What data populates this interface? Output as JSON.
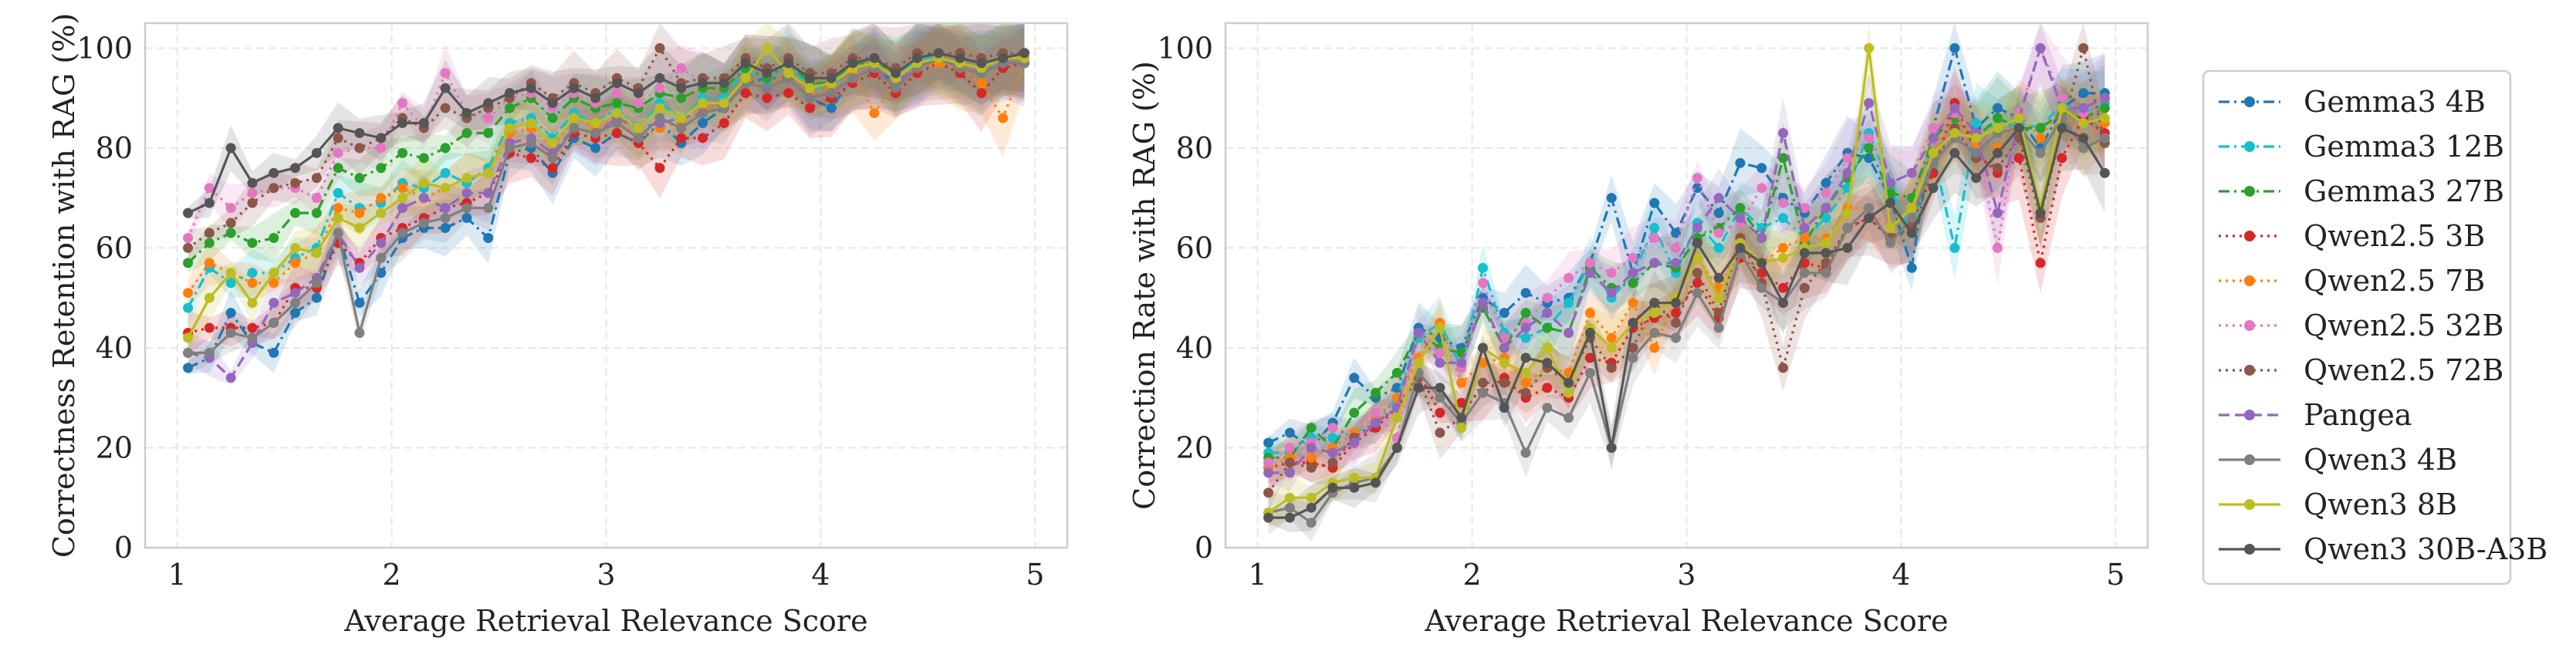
{
  "chart_data": [
    {
      "type": "line",
      "title": "",
      "xlabel": "Average Retrieval Relevance Score",
      "ylabel": "Correctness Retention with RAG (%)",
      "xlim": [
        0.85,
        5.15
      ],
      "ylim": [
        0,
        105
      ],
      "xticks": [
        1,
        2,
        3,
        4,
        5
      ],
      "yticks": [
        0,
        20,
        40,
        60,
        80,
        100
      ],
      "grid": true,
      "x": [
        1.05,
        1.15,
        1.25,
        1.35,
        1.45,
        1.55,
        1.65,
        1.75,
        1.85,
        1.95,
        2.05,
        2.15,
        2.25,
        2.35,
        2.45,
        2.55,
        2.65,
        2.75,
        2.85,
        2.95,
        3.05,
        3.15,
        3.25,
        3.35,
        3.45,
        3.55,
        3.65,
        3.75,
        3.85,
        3.95,
        4.05,
        4.15,
        4.25,
        4.35,
        4.45,
        4.55,
        4.65,
        4.75,
        4.85,
        4.95
      ],
      "series": [
        {
          "name": "Gemma3 4B",
          "values": [
            36,
            38,
            47,
            41,
            39,
            47,
            50,
            63,
            49,
            55,
            62,
            64,
            64,
            66,
            62,
            79,
            80,
            75,
            82,
            80,
            83,
            81,
            85,
            81,
            85,
            88,
            93,
            94,
            94,
            90,
            88,
            94,
            96,
            93,
            96,
            98,
            96,
            95,
            97,
            97
          ]
        },
        {
          "name": "Gemma3 12B",
          "values": [
            48,
            56,
            53,
            55,
            55,
            58,
            60,
            71,
            68,
            69,
            73,
            72,
            75,
            73,
            76,
            85,
            86,
            82,
            87,
            85,
            88,
            84,
            89,
            86,
            90,
            90,
            96,
            93,
            97,
            92,
            92,
            96,
            97,
            94,
            98,
            98,
            97,
            96,
            98,
            98
          ]
        },
        {
          "name": "Gemma3 27B",
          "values": [
            57,
            61,
            63,
            61,
            62,
            67,
            67,
            76,
            74,
            76,
            79,
            78,
            80,
            83,
            83,
            88,
            90,
            86,
            90,
            88,
            89,
            88,
            91,
            90,
            92,
            92,
            96,
            94,
            97,
            93,
            93,
            97,
            97,
            95,
            98,
            99,
            98,
            97,
            98,
            99
          ]
        },
        {
          "name": "Qwen2.5 3B",
          "values": [
            43,
            44,
            44,
            44,
            45,
            52,
            52,
            61,
            57,
            62,
            64,
            66,
            68,
            69,
            71,
            79,
            78,
            76,
            83,
            82,
            83,
            81,
            76,
            82,
            82,
            85,
            91,
            90,
            91,
            88,
            90,
            93,
            95,
            91,
            95,
            97,
            95,
            91,
            96,
            97
          ]
        },
        {
          "name": "Qwen2.5 7B",
          "values": [
            51,
            57,
            55,
            53,
            53,
            57,
            59,
            68,
            67,
            70,
            72,
            70,
            72,
            74,
            75,
            83,
            84,
            80,
            86,
            84,
            86,
            82,
            84,
            85,
            88,
            89,
            94,
            92,
            95,
            91,
            92,
            95,
            87,
            93,
            96,
            97,
            96,
            93,
            86,
            97
          ]
        },
        {
          "name": "Qwen2.5 32B",
          "values": [
            62,
            72,
            68,
            71,
            72,
            72,
            70,
            79,
            80,
            80,
            89,
            84,
            95,
            87,
            86,
            90,
            91,
            88,
            91,
            89,
            91,
            89,
            92,
            96,
            93,
            93,
            97,
            95,
            97,
            94,
            94,
            97,
            98,
            95,
            98,
            99,
            98,
            97,
            98,
            99
          ]
        },
        {
          "name": "Qwen2.5 72B",
          "values": [
            60,
            63,
            65,
            69,
            72,
            73,
            74,
            82,
            80,
            82,
            86,
            84,
            88,
            86,
            88,
            90,
            93,
            90,
            93,
            91,
            94,
            92,
            100,
            93,
            94,
            94,
            98,
            96,
            98,
            95,
            95,
            98,
            98,
            96,
            99,
            99,
            99,
            98,
            99,
            99
          ]
        },
        {
          "name": "Pangea",
          "values": [
            39,
            38,
            34,
            41,
            49,
            51,
            54,
            63,
            56,
            61,
            68,
            70,
            68,
            71,
            71,
            81,
            82,
            79,
            84,
            83,
            86,
            84,
            85,
            86,
            87,
            88,
            93,
            92,
            94,
            90,
            91,
            94,
            96,
            93,
            96,
            98,
            96,
            95,
            97,
            97
          ]
        },
        {
          "name": "Qwen3 4B",
          "values": [
            39,
            39,
            43,
            42,
            45,
            49,
            53,
            63,
            43,
            58,
            63,
            65,
            66,
            68,
            68,
            80,
            81,
            78,
            84,
            83,
            85,
            82,
            86,
            84,
            87,
            88,
            93,
            92,
            94,
            90,
            91,
            94,
            96,
            92,
            96,
            98,
            96,
            95,
            97,
            97
          ]
        },
        {
          "name": "Qwen3 8B",
          "values": [
            42,
            50,
            55,
            49,
            55,
            60,
            59,
            66,
            64,
            67,
            70,
            73,
            72,
            74,
            75,
            84,
            85,
            81,
            86,
            85,
            87,
            84,
            88,
            86,
            89,
            89,
            94,
            100,
            95,
            92,
            93,
            96,
            97,
            94,
            97,
            98,
            97,
            96,
            98,
            98
          ]
        },
        {
          "name": "Qwen3 30B-A3B",
          "values": [
            67,
            69,
            80,
            73,
            75,
            76,
            79,
            84,
            83,
            82,
            85,
            85,
            92,
            87,
            89,
            91,
            92,
            89,
            92,
            90,
            93,
            91,
            94,
            92,
            93,
            93,
            97,
            95,
            97,
            94,
            94,
            97,
            98,
            95,
            98,
            99,
            98,
            97,
            98,
            99
          ]
        }
      ]
    },
    {
      "type": "line",
      "title": "",
      "xlabel": "Average Retrieval Relevance Score",
      "ylabel": "Correction Rate with RAG (%)",
      "xlim": [
        0.85,
        5.15
      ],
      "ylim": [
        0,
        105
      ],
      "xticks": [
        1,
        2,
        3,
        4,
        5
      ],
      "yticks": [
        0,
        20,
        40,
        60,
        80,
        100
      ],
      "grid": true,
      "x": [
        1.05,
        1.15,
        1.25,
        1.35,
        1.45,
        1.55,
        1.65,
        1.75,
        1.85,
        1.95,
        2.05,
        2.15,
        2.25,
        2.35,
        2.45,
        2.55,
        2.65,
        2.75,
        2.85,
        2.95,
        3.05,
        3.15,
        3.25,
        3.35,
        3.45,
        3.55,
        3.65,
        3.75,
        3.85,
        3.95,
        4.05,
        4.15,
        4.25,
        4.35,
        4.45,
        4.55,
        4.65,
        4.75,
        4.85,
        4.95
      ],
      "series": [
        {
          "name": "Gemma3 4B",
          "values": [
            21,
            23,
            20,
            25,
            34,
            30,
            32,
            44,
            42,
            40,
            50,
            47,
            51,
            49,
            50,
            57,
            70,
            55,
            69,
            63,
            72,
            67,
            77,
            76,
            70,
            67,
            73,
            79,
            78,
            70,
            56,
            84,
            100,
            84,
            88,
            86,
            80,
            88,
            91,
            91
          ]
        },
        {
          "name": "Gemma3 12B",
          "values": [
            19,
            19,
            22,
            22,
            23,
            25,
            30,
            42,
            45,
            36,
            56,
            43,
            42,
            44,
            49,
            57,
            50,
            55,
            64,
            55,
            65,
            60,
            68,
            64,
            66,
            62,
            66,
            72,
            83,
            72,
            63,
            79,
            60,
            85,
            84,
            85,
            84,
            89,
            87,
            89
          ]
        },
        {
          "name": "Gemma3 27B",
          "values": [
            18,
            18,
            24,
            20,
            27,
            31,
            35,
            43,
            40,
            39,
            48,
            40,
            47,
            44,
            43,
            56,
            52,
            53,
            57,
            56,
            62,
            64,
            68,
            62,
            78,
            61,
            68,
            74,
            80,
            71,
            70,
            82,
            86,
            82,
            86,
            84,
            84,
            87,
            86,
            88
          ]
        },
        {
          "name": "Qwen2.5 3B",
          "values": [
            16,
            17,
            17,
            16,
            21,
            24,
            28,
            35,
            27,
            29,
            31,
            34,
            30,
            32,
            30,
            38,
            37,
            44,
            46,
            47,
            53,
            46,
            58,
            55,
            52,
            57,
            56,
            64,
            66,
            62,
            65,
            75,
            89,
            79,
            75,
            78,
            57,
            78,
            86,
            83
          ]
        },
        {
          "name": "Qwen2.5 7B",
          "values": [
            16,
            18,
            18,
            20,
            23,
            26,
            30,
            38,
            45,
            33,
            37,
            38,
            33,
            36,
            35,
            47,
            42,
            49,
            40,
            50,
            58,
            52,
            60,
            57,
            60,
            62,
            62,
            68,
            68,
            64,
            68,
            79,
            87,
            81,
            80,
            87,
            82,
            88,
            82,
            85
          ]
        },
        {
          "name": "Qwen2.5 32B",
          "values": [
            17,
            20,
            21,
            24,
            21,
            27,
            22,
            43,
            39,
            36,
            53,
            42,
            45,
            50,
            54,
            57,
            55,
            58,
            62,
            60,
            74,
            63,
            65,
            72,
            69,
            68,
            71,
            78,
            82,
            73,
            75,
            84,
            87,
            82,
            60,
            87,
            100,
            90,
            87,
            90
          ]
        },
        {
          "name": "Qwen2.5 72B",
          "values": [
            11,
            17,
            16,
            17,
            22,
            25,
            28,
            34,
            23,
            26,
            33,
            33,
            31,
            36,
            33,
            42,
            36,
            40,
            49,
            45,
            55,
            47,
            62,
            53,
            36,
            52,
            57,
            64,
            66,
            62,
            64,
            77,
            84,
            78,
            76,
            82,
            66,
            84,
            100,
            81
          ]
        },
        {
          "name": "Pangea",
          "values": [
            15,
            15,
            20,
            19,
            21,
            25,
            28,
            43,
            37,
            37,
            49,
            40,
            44,
            47,
            43,
            55,
            51,
            55,
            57,
            57,
            64,
            70,
            66,
            62,
            83,
            64,
            68,
            75,
            89,
            73,
            75,
            82,
            88,
            83,
            67,
            86,
            100,
            88,
            88,
            90
          ]
        },
        {
          "name": "Qwen3 4B",
          "values": [
            7,
            8,
            5,
            11,
            13,
            14,
            20,
            35,
            30,
            25,
            31,
            29,
            19,
            28,
            26,
            35,
            20,
            38,
            43,
            42,
            51,
            44,
            59,
            52,
            49,
            55,
            55,
            64,
            68,
            61,
            66,
            77,
            82,
            79,
            83,
            84,
            79,
            86,
            80,
            82
          ]
        },
        {
          "name": "Qwen3 8B",
          "values": [
            7,
            10,
            10,
            13,
            14,
            14,
            26,
            37,
            44,
            24,
            40,
            37,
            35,
            40,
            31,
            44,
            40,
            45,
            47,
            50,
            58,
            50,
            61,
            57,
            58,
            60,
            61,
            67,
            100,
            64,
            68,
            79,
            83,
            82,
            84,
            86,
            68,
            88,
            85,
            86
          ]
        },
        {
          "name": "Qwen3 30B-A3B",
          "values": [
            6,
            6,
            8,
            12,
            12,
            13,
            20,
            32,
            32,
            26,
            40,
            28,
            38,
            37,
            33,
            43,
            20,
            45,
            49,
            49,
            61,
            54,
            60,
            57,
            49,
            59,
            59,
            60,
            66,
            69,
            63,
            72,
            79,
            74,
            79,
            84,
            67,
            84,
            82,
            75
          ]
        }
      ]
    }
  ],
  "legend": {
    "position": "right",
    "entries": [
      {
        "name": "Gemma3 4B",
        "color": "#1f77b4",
        "dash": "dashdot"
      },
      {
        "name": "Gemma3 12B",
        "color": "#17becf",
        "dash": "dashdot"
      },
      {
        "name": "Gemma3 27B",
        "color": "#2ca02c",
        "dash": "dashdot"
      },
      {
        "name": "Qwen2.5 3B",
        "color": "#d62728",
        "dash": "dotted"
      },
      {
        "name": "Qwen2.5 7B",
        "color": "#ff7f0e",
        "dash": "dotted"
      },
      {
        "name": "Qwen2.5 32B",
        "color": "#e377c2",
        "dash": "dotted"
      },
      {
        "name": "Qwen2.5 72B",
        "color": "#8c564b",
        "dash": "dotted"
      },
      {
        "name": "Pangea",
        "color": "#9467bd",
        "dash": "dashed"
      },
      {
        "name": "Qwen3 4B",
        "color": "#7f7f7f",
        "dash": "solid"
      },
      {
        "name": "Qwen3 8B",
        "color": "#bcbd22",
        "dash": "solid"
      },
      {
        "name": "Qwen3 30B-A3B",
        "color": "#555555",
        "dash": "solid"
      }
    ]
  }
}
